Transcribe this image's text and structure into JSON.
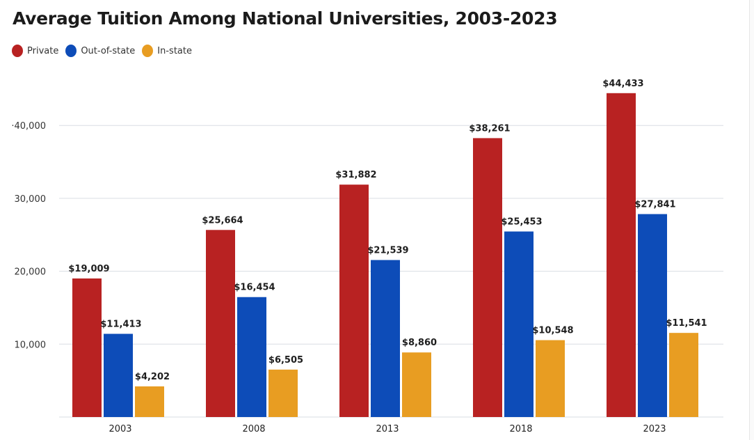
{
  "title": "Average Tuition Among National Universities, 2003-2023",
  "legend": [
    {
      "name": "Private",
      "color": "#b82222"
    },
    {
      "name": "Out-of-state",
      "color": "#0d4cb8"
    },
    {
      "name": "In-state",
      "color": "#e89d22"
    }
  ],
  "chart_data": {
    "type": "bar",
    "title": "Average Tuition Among National Universities, 2003-2023",
    "xlabel": "",
    "ylabel": "",
    "categories": [
      "2003",
      "2008",
      "2013",
      "2018",
      "2023"
    ],
    "series": [
      {
        "name": "Private",
        "color": "#b82222",
        "values": [
          19009,
          25664,
          31882,
          38261,
          44433
        ],
        "labels": [
          "$19,009",
          "$25,664",
          "$31,882",
          "$38,261",
          "$44,433"
        ]
      },
      {
        "name": "Out-of-state",
        "color": "#0d4cb8",
        "values": [
          11413,
          16454,
          21539,
          25453,
          27841
        ],
        "labels": [
          "$11,413",
          "$16,454",
          "$21,539",
          "$25,453",
          "$27,841"
        ]
      },
      {
        "name": "In-state",
        "color": "#e89d22",
        "values": [
          4202,
          6505,
          8860,
          10548,
          11541
        ],
        "labels": [
          "$4,202",
          "$6,505",
          "$8,860",
          "$10,548",
          "$11,541"
        ]
      }
    ],
    "y_ticks": [
      0,
      10000,
      20000,
      30000,
      40000
    ],
    "y_tick_labels": [
      "",
      "10,000",
      "20,000",
      "30,000",
      "·40,000"
    ],
    "ylim": [
      0,
      47000
    ],
    "grid": true,
    "legend_position": "top-left"
  }
}
